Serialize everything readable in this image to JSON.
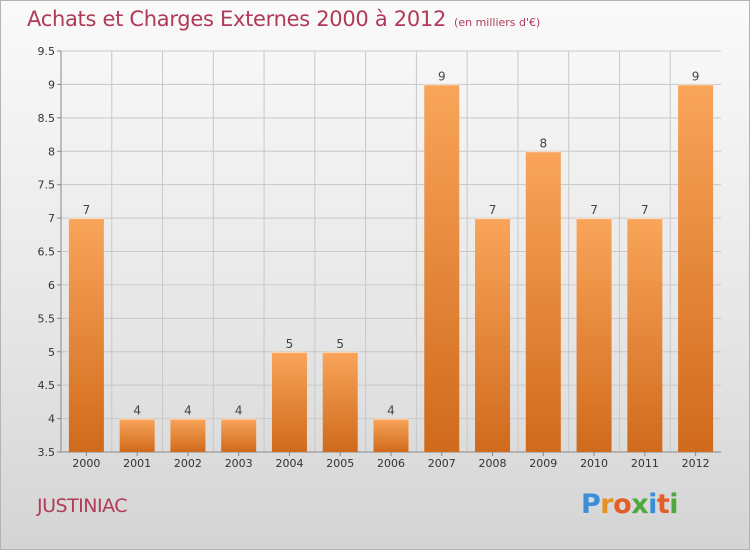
{
  "header": {
    "title": "Achats et Charges Externes 2000 à 2012",
    "subtitle": "(en milliers d'€)"
  },
  "footer": {
    "town": "JUSTINIAC",
    "logo_letters": [
      "P",
      "r",
      "o",
      "x",
      "i",
      "t",
      "i"
    ],
    "logo_colors": [
      "#3a8fd8",
      "#e8901e",
      "#e35d28",
      "#4da93e",
      "#3a8fd8",
      "#e35d28",
      "#4da93e"
    ]
  },
  "chart_data": {
    "type": "bar",
    "categories": [
      "2000",
      "2001",
      "2002",
      "2003",
      "2004",
      "2005",
      "2006",
      "2007",
      "2008",
      "2009",
      "2010",
      "2011",
      "2012"
    ],
    "values": [
      7,
      4,
      4,
      4,
      5,
      5,
      4,
      9,
      7,
      8,
      7,
      7,
      9
    ],
    "title": "Achats et Charges Externes 2000 à 2012",
    "ylim": [
      3.5,
      9.5
    ],
    "yticks": [
      "3.5",
      "4",
      "4.5",
      "5",
      "5.5",
      "6",
      "6.5",
      "7",
      "7.5",
      "8",
      "8.5",
      "9",
      "9.5"
    ],
    "grid": true,
    "colors": {
      "bar_light": "#f9a55a",
      "bar_dark": "#d06a1c",
      "grid": "#c8c8c8"
    }
  }
}
